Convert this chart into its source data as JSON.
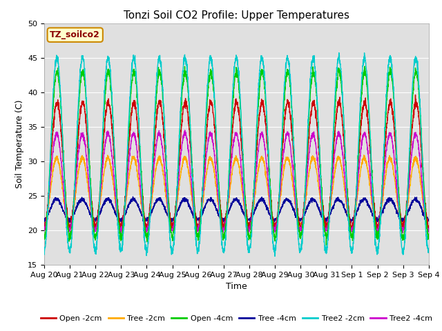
{
  "title": "Tonzi Soil CO2 Profile: Upper Temperatures",
  "xlabel": "Time",
  "ylabel": "Soil Temperature (C)",
  "ylim": [
    15,
    50
  ],
  "xtick_labels": [
    "Aug 20",
    "Aug 21",
    "Aug 22",
    "Aug 23",
    "Aug 24",
    "Aug 25",
    "Aug 26",
    "Aug 27",
    "Aug 28",
    "Aug 29",
    "Aug 30",
    "Aug 31",
    "Sep 1",
    "Sep 2",
    "Sep 3",
    "Sep 4"
  ],
  "legend_label": "TZ_soilco2",
  "series_labels": [
    "Open -2cm",
    "Tree -2cm",
    "Open -4cm",
    "Tree -4cm",
    "Tree2 -2cm",
    "Tree2 -4cm"
  ],
  "series_colors": [
    "#cc0000",
    "#ffaa00",
    "#00cc00",
    "#000099",
    "#00cccc",
    "#cc00cc"
  ],
  "background_color": "#ffffff",
  "plot_bg_color": "#e0e0e0",
  "title_fontsize": 11,
  "axis_label_fontsize": 9,
  "tick_label_fontsize": 8,
  "legend_fontsize": 8,
  "duration_days": 15,
  "open_2cm_amplitude": 9,
  "open_2cm_baseline": 29.5,
  "tree_2cm_amplitude": 5.0,
  "tree_2cm_baseline": 25.5,
  "open_4cm_amplitude": 12,
  "open_4cm_baseline": 31,
  "tree_4cm_amplitude": 1.5,
  "tree_4cm_baseline": 23,
  "tree2_2cm_amplitude": 14,
  "tree2_2cm_baseline": 31,
  "tree2_4cm_amplitude": 7,
  "tree2_4cm_baseline": 27,
  "grid_color": "#ffffff",
  "grid_linewidth": 0.8
}
